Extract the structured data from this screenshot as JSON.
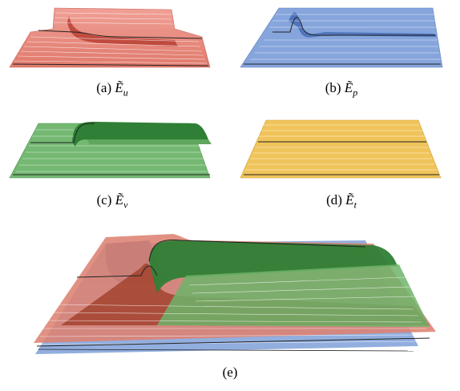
{
  "figure": {
    "panels": [
      {
        "id": "a",
        "label": "(a)",
        "symbol": "Ẽ",
        "subscript": "u",
        "color": "#e8867a"
      },
      {
        "id": "b",
        "label": "(b)",
        "symbol": "Ẽ",
        "subscript": "p",
        "color": "#7f9fd6"
      },
      {
        "id": "c",
        "label": "(c)",
        "symbol": "Ẽ",
        "subscript": "ν",
        "color": "#6db46a"
      },
      {
        "id": "d",
        "label": "(d)",
        "symbol": "Ẽ",
        "subscript": "t",
        "color": "#eec25a"
      }
    ],
    "combined": {
      "label": "(e)"
    }
  }
}
